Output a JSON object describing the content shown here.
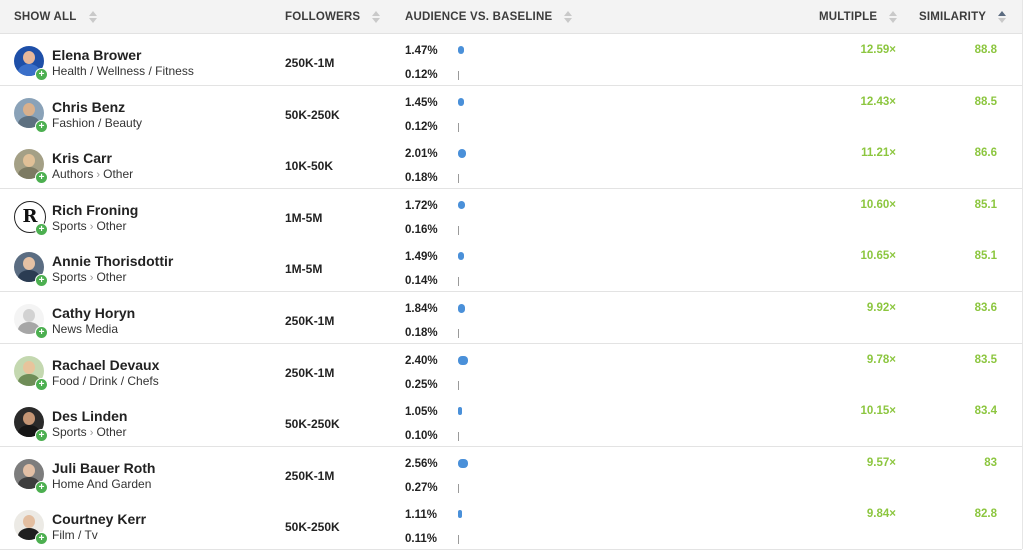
{
  "columns": {
    "show_all": "SHOW ALL",
    "followers": "FOLLOWERS",
    "audience": "AUDIENCE VS. BASELINE",
    "multiple": "MULTIPLE",
    "similarity": "SIMILARITY"
  },
  "sort": {
    "column": "similarity",
    "direction": "descending"
  },
  "colors": {
    "accent_green": "#8cc63f",
    "bar_blue": "#4a90d9",
    "add_badge": "#4caf50"
  },
  "rows": [
    {
      "name": "Elena Brower",
      "category": [
        "Health / Wellness / Fitness"
      ],
      "followers": "250K-1M",
      "audience": "1.47%",
      "baseline": "0.12%",
      "multiple": "12.59×",
      "similarity": "88.8",
      "add": "+"
    },
    {
      "name": "Chris Benz",
      "category": [
        "Fashion / Beauty"
      ],
      "followers": "50K-250K",
      "audience": "1.45%",
      "baseline": "0.12%",
      "multiple": "12.43×",
      "similarity": "88.5",
      "add": "+"
    },
    {
      "name": "Kris Carr",
      "category": [
        "Authors",
        "Other"
      ],
      "followers": "10K-50K",
      "audience": "2.01%",
      "baseline": "0.18%",
      "multiple": "11.21×",
      "similarity": "86.6",
      "add": "+"
    },
    {
      "name": "Rich Froning",
      "category": [
        "Sports",
        "Other"
      ],
      "followers": "1M-5M",
      "audience": "1.72%",
      "baseline": "0.16%",
      "multiple": "10.60×",
      "similarity": "85.1",
      "add": "+"
    },
    {
      "name": "Annie Thorisdottir",
      "category": [
        "Sports",
        "Other"
      ],
      "followers": "1M-5M",
      "audience": "1.49%",
      "baseline": "0.14%",
      "multiple": "10.65×",
      "similarity": "85.1",
      "add": "+"
    },
    {
      "name": "Cathy Horyn",
      "category": [
        "News Media"
      ],
      "followers": "250K-1M",
      "audience": "1.84%",
      "baseline": "0.18%",
      "multiple": "9.92×",
      "similarity": "83.6",
      "add": "+"
    },
    {
      "name": "Rachael Devaux",
      "category": [
        "Food / Drink / Chefs"
      ],
      "followers": "250K-1M",
      "audience": "2.40%",
      "baseline": "0.25%",
      "multiple": "9.78×",
      "similarity": "83.5",
      "add": "+"
    },
    {
      "name": "Des Linden",
      "category": [
        "Sports",
        "Other"
      ],
      "followers": "50K-250K",
      "audience": "1.05%",
      "baseline": "0.10%",
      "multiple": "10.15×",
      "similarity": "83.4",
      "add": "+"
    },
    {
      "name": "Juli Bauer Roth",
      "category": [
        "Home And Garden"
      ],
      "followers": "250K-1M",
      "audience": "2.56%",
      "baseline": "0.27%",
      "multiple": "9.57×",
      "similarity": "83",
      "add": "+"
    },
    {
      "name": "Courtney Kerr",
      "category": [
        "Film / Tv"
      ],
      "followers": "50K-250K",
      "audience": "1.11%",
      "baseline": "0.11%",
      "multiple": "9.84×",
      "similarity": "82.8",
      "add": "+"
    }
  ]
}
